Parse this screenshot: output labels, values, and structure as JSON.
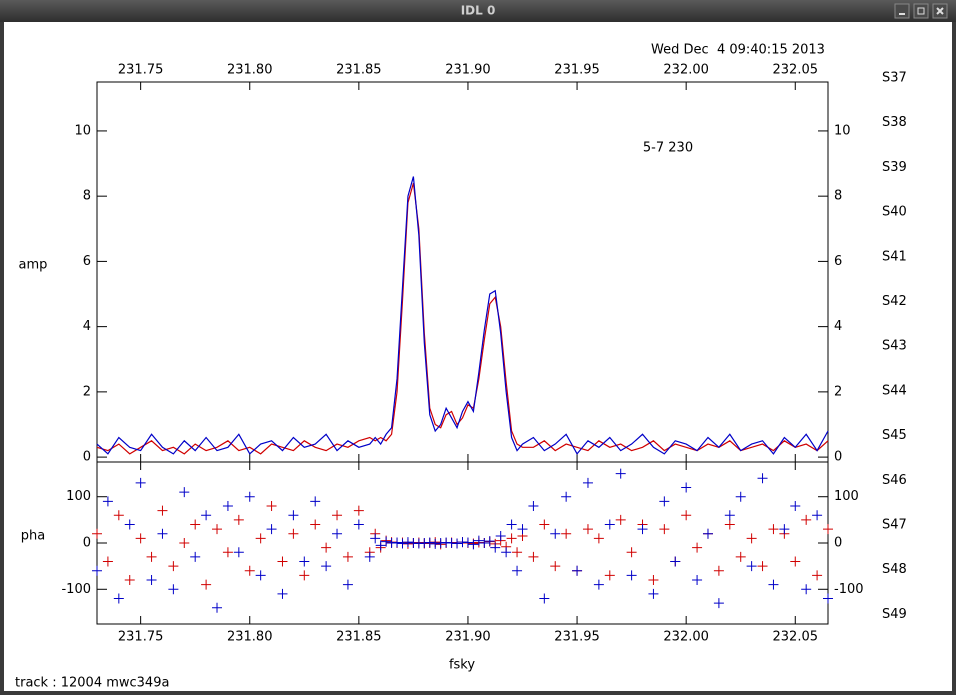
{
  "window_title": "IDL 0",
  "timestamp": "Wed Dec  4 09:40:15 2013",
  "footer": "track : 12004 mwc349a",
  "source_labels": [
    {
      "text": "S37",
      "color": "#d00000"
    },
    {
      "text": "S38",
      "color": "#d00000"
    },
    {
      "text": "S39",
      "color": "#d00000"
    },
    {
      "text": "S40",
      "color": "#d00000"
    },
    {
      "text": "S41",
      "color": "#d00000"
    },
    {
      "text": "S42",
      "color": "#d00000"
    },
    {
      "text": "S43",
      "color": "#d00000"
    },
    {
      "text": "S44",
      "color": "#d00000"
    },
    {
      "text": "S45",
      "color": "#d00000"
    },
    {
      "text": "S46",
      "color": "#d00000"
    },
    {
      "text": "S47",
      "color": "#d00000"
    },
    {
      "text": "S48",
      "color": "#d00000"
    },
    {
      "text": "S49",
      "color": "#0000c8"
    }
  ],
  "chart_data": [
    {
      "type": "line",
      "ylabel": "amp",
      "annotation": "5-7 230",
      "x": [
        231.73,
        231.735,
        231.74,
        231.745,
        231.75,
        231.755,
        231.76,
        231.765,
        231.77,
        231.775,
        231.78,
        231.785,
        231.79,
        231.795,
        231.8,
        231.805,
        231.81,
        231.815,
        231.82,
        231.825,
        231.83,
        231.835,
        231.84,
        231.845,
        231.85,
        231.855,
        231.8575,
        231.86,
        231.8625,
        231.865,
        231.8675,
        231.87,
        231.8725,
        231.875,
        231.8775,
        231.88,
        231.8825,
        231.885,
        231.8875,
        231.89,
        231.8925,
        231.895,
        231.8975,
        231.9,
        231.9025,
        231.905,
        231.9075,
        231.91,
        231.9125,
        231.915,
        231.9175,
        231.92,
        231.9225,
        231.925,
        231.93,
        231.935,
        231.94,
        231.945,
        231.95,
        231.955,
        231.96,
        231.965,
        231.97,
        231.975,
        231.98,
        231.985,
        231.99,
        231.995,
        232,
        232.005,
        232.01,
        232.015,
        232.02,
        232.025,
        232.03,
        232.035,
        232.04,
        232.045,
        232.05,
        232.055,
        232.06,
        232.065
      ],
      "series": [
        {
          "color": "#d00000",
          "values": [
            0.3,
            0.2,
            0.4,
            0.1,
            0.3,
            0.5,
            0.2,
            0.3,
            0.1,
            0.4,
            0.2,
            0.3,
            0.5,
            0.2,
            0.3,
            0.1,
            0.4,
            0.3,
            0.2,
            0.5,
            0.3,
            0.2,
            0.4,
            0.3,
            0.5,
            0.6,
            0.5,
            0.6,
            0.5,
            0.7,
            2.0,
            4.8,
            7.8,
            8.4,
            7.0,
            3.8,
            1.5,
            1.0,
            0.9,
            1.3,
            1.4,
            1.0,
            1.2,
            1.6,
            1.5,
            2.4,
            3.6,
            4.7,
            4.9,
            4.0,
            2.3,
            0.8,
            0.4,
            0.3,
            0.3,
            0.5,
            0.2,
            0.4,
            0.3,
            0.2,
            0.5,
            0.3,
            0.4,
            0.2,
            0.3,
            0.5,
            0.2,
            0.4,
            0.3,
            0.2,
            0.4,
            0.3,
            0.5,
            0.2,
            0.3,
            0.4,
            0.2,
            0.5,
            0.3,
            0.4,
            0.2,
            0.5
          ]
        },
        {
          "color": "#0000c8",
          "values": [
            0.4,
            0.1,
            0.6,
            0.3,
            0.2,
            0.7,
            0.3,
            0.1,
            0.5,
            0.2,
            0.6,
            0.2,
            0.3,
            0.7,
            0.1,
            0.4,
            0.5,
            0.2,
            0.6,
            0.3,
            0.4,
            0.7,
            0.2,
            0.5,
            0.3,
            0.4,
            0.6,
            0.4,
            0.7,
            0.9,
            2.4,
            5.2,
            8.0,
            8.6,
            6.8,
            3.5,
            1.3,
            0.8,
            1.0,
            1.5,
            1.2,
            0.9,
            1.4,
            1.7,
            1.4,
            2.6,
            3.9,
            5.0,
            5.1,
            3.8,
            2.0,
            0.6,
            0.2,
            0.4,
            0.6,
            0.2,
            0.4,
            0.7,
            0.1,
            0.5,
            0.3,
            0.6,
            0.2,
            0.4,
            0.7,
            0.3,
            0.1,
            0.5,
            0.4,
            0.2,
            0.6,
            0.3,
            0.7,
            0.2,
            0.4,
            0.5,
            0.1,
            0.6,
            0.3,
            0.7,
            0.2,
            0.8
          ]
        }
      ],
      "xlim": [
        231.73,
        232.065
      ],
      "xticks": [
        231.75,
        {
          "value": 231.8,
          "label": "231.80"
        },
        231.85,
        {
          "value": 231.9,
          "label": "231.90"
        },
        231.95,
        {
          "value": 232,
          "label": "232.00"
        },
        232.05
      ],
      "ylim": [
        -0.15,
        11.5
      ],
      "yticks": [
        0,
        2,
        4,
        6,
        8,
        10
      ]
    },
    {
      "type": "scatter",
      "ylabel": "pha",
      "xlabel": "fsky",
      "x": [
        231.73,
        231.735,
        231.74,
        231.745,
        231.75,
        231.755,
        231.76,
        231.765,
        231.77,
        231.775,
        231.78,
        231.785,
        231.79,
        231.795,
        231.8,
        231.805,
        231.81,
        231.815,
        231.82,
        231.825,
        231.83,
        231.835,
        231.84,
        231.845,
        231.85,
        231.855,
        231.8575,
        231.86,
        231.8625,
        231.865,
        231.8675,
        231.87,
        231.8725,
        231.875,
        231.8775,
        231.88,
        231.8825,
        231.885,
        231.8875,
        231.89,
        231.8925,
        231.895,
        231.8975,
        231.9,
        231.9025,
        231.905,
        231.9075,
        231.91,
        231.9125,
        231.915,
        231.9175,
        231.92,
        231.9225,
        231.925,
        231.93,
        231.935,
        231.94,
        231.945,
        231.95,
        231.955,
        231.96,
        231.965,
        231.97,
        231.975,
        231.98,
        231.985,
        231.99,
        231.995,
        232,
        232.005,
        232.01,
        232.015,
        232.02,
        232.025,
        232.03,
        232.035,
        232.04,
        232.045,
        232.05,
        232.055,
        232.06,
        232.065
      ],
      "series": [
        {
          "color": "#d00000",
          "values": [
            20,
            -40,
            60,
            -80,
            10,
            -30,
            70,
            -50,
            0,
            40,
            -90,
            30,
            -20,
            50,
            -60,
            10,
            80,
            -40,
            20,
            -70,
            40,
            -10,
            60,
            -30,
            70,
            -20,
            20,
            -10,
            5,
            2,
            0,
            1,
            -2,
            0,
            1,
            -1,
            0,
            2,
            -3,
            0,
            1,
            -1,
            2,
            0,
            -1,
            1,
            0,
            3,
            -2,
            5,
            -8,
            10,
            -20,
            15,
            -30,
            40,
            -50,
            20,
            -60,
            30,
            10,
            -70,
            50,
            -20,
            40,
            -80,
            30,
            -40,
            60,
            -10,
            20,
            -60,
            40,
            -30,
            10,
            -50,
            30,
            20,
            -40,
            50,
            -70,
            30
          ]
        },
        {
          "color": "#0000c8",
          "values": [
            -60,
            90,
            -120,
            40,
            130,
            -80,
            20,
            -100,
            110,
            -30,
            60,
            -140,
            80,
            -20,
            100,
            -70,
            30,
            -110,
            60,
            -40,
            90,
            -50,
            20,
            -90,
            40,
            -30,
            10,
            -5,
            3,
            0,
            1,
            -1,
            2,
            0,
            -1,
            0,
            1,
            -2,
            0,
            1,
            0,
            -1,
            2,
            1,
            -3,
            5,
            0,
            4,
            -10,
            15,
            -20,
            40,
            -60,
            30,
            80,
            -120,
            20,
            100,
            -60,
            130,
            -90,
            40,
            150,
            -70,
            30,
            -110,
            90,
            -40,
            120,
            -80,
            20,
            -130,
            60,
            100,
            -50,
            140,
            -90,
            30,
            80,
            -100,
            60,
            -120
          ]
        }
      ],
      "xlim": [
        231.73,
        232.065
      ],
      "xticks": [
        231.75,
        {
          "value": 231.8,
          "label": "231.80"
        },
        231.85,
        {
          "value": 231.9,
          "label": "231.90"
        },
        231.95,
        {
          "value": 232,
          "label": "232.00"
        },
        232.05
      ],
      "ylim": [
        -175,
        175
      ],
      "yticks": [
        -100,
        0,
        100
      ]
    }
  ]
}
